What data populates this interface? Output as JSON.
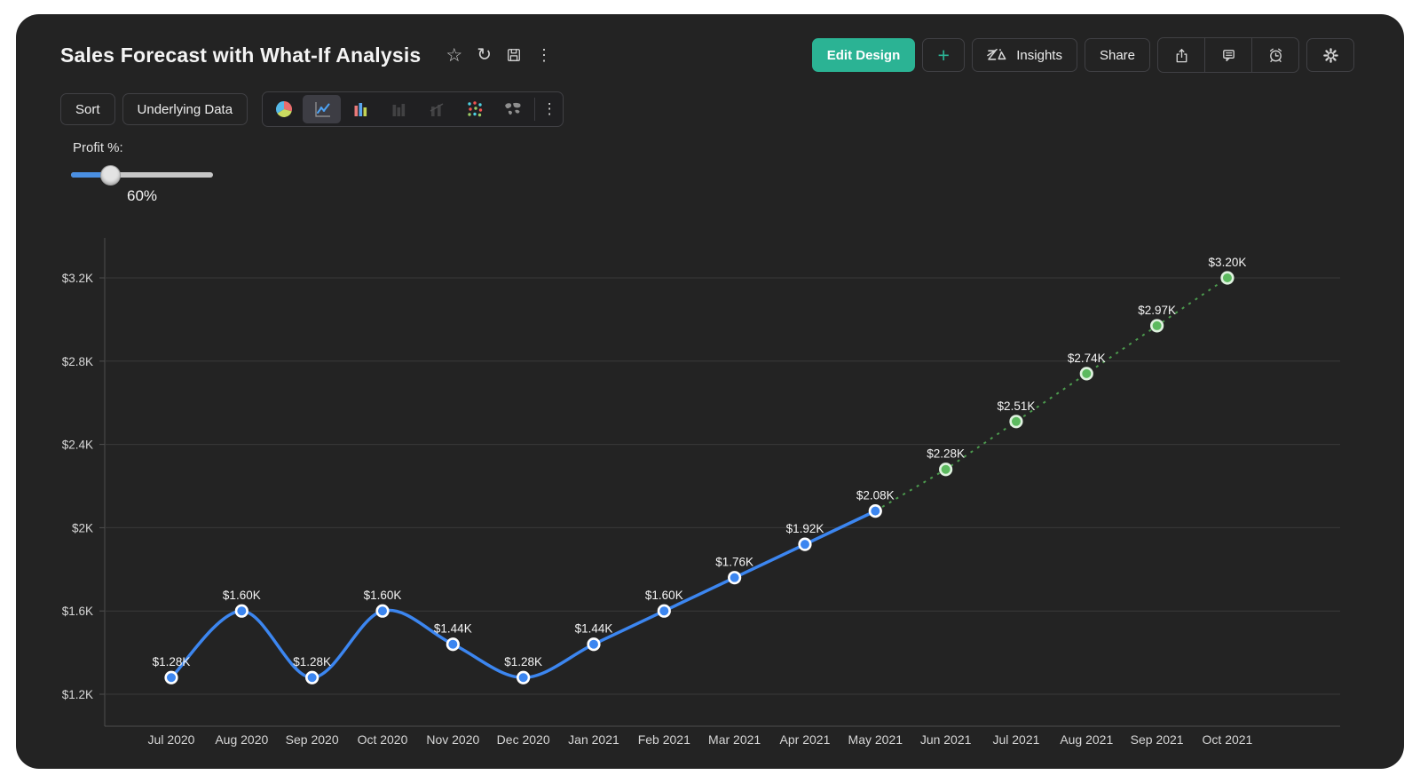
{
  "header": {
    "title": "Sales Forecast with What-If Analysis",
    "title_icons": {
      "star": "☆",
      "refresh": "↻",
      "more": "⋮"
    },
    "actions": {
      "edit_design": "Edit Design",
      "add": "+",
      "insights": "Insights",
      "share": "Share"
    },
    "action_icon_names": [
      "export-icon",
      "comment-icon",
      "alarm-icon",
      "settings-icon"
    ]
  },
  "toolbar": {
    "sort": "Sort",
    "underlying_data": "Underlying Data",
    "more": "⋮",
    "chart_types": [
      "pie-chart",
      "line-chart",
      "bar-chart",
      "stacked-bar-chart",
      "combo-chart",
      "scatter-plot",
      "map-chart"
    ],
    "selected_chart_type": "line-chart"
  },
  "whatif": {
    "label": "Profit %:",
    "value": "60%",
    "slider_position_pct": 27
  },
  "colors": {
    "accent_teal": "#2BB394",
    "line_blue": "#3C86F0",
    "forecast_green": "#4C9B4E",
    "forecast_marker_green": "#5CBA5F",
    "panel_bg": "#232323"
  },
  "chart_data": {
    "type": "line",
    "title": "Sales Forecast with What-If Analysis",
    "legend": "none",
    "grid": "horizontal",
    "x_labels": [
      "Jul 2020",
      "Aug 2020",
      "Sep 2020",
      "Oct 2020",
      "Nov 2020",
      "Dec 2020",
      "Jan 2021",
      "Feb 2021",
      "Mar 2021",
      "Apr 2021",
      "May 2021",
      "Jun 2021",
      "Jul 2021",
      "Aug 2021",
      "Sep 2021",
      "Oct 2021"
    ],
    "y_ticks": [
      {
        "value": 1200,
        "label": "$1.2K"
      },
      {
        "value": 1600,
        "label": "$1.6K"
      },
      {
        "value": 2000,
        "label": "$2K"
      },
      {
        "value": 2400,
        "label": "$2.4K"
      },
      {
        "value": 2800,
        "label": "$2.8K"
      },
      {
        "value": 3200,
        "label": "$3.2K"
      }
    ],
    "series": [
      {
        "id": "actual",
        "line_style": "solid",
        "color": "#3C86F0",
        "marker_fill": "#3C86F0",
        "marker_ring": "#FFFFFF",
        "start_index": 0,
        "values": [
          1280,
          1600,
          1280,
          1600,
          1440,
          1280,
          1440,
          1600,
          1760,
          1920,
          2080
        ],
        "point_labels": [
          "$1.28K",
          "$1.60K",
          "$1.28K",
          "$1.60K",
          "$1.44K",
          "$1.28K",
          "$1.44K",
          "$1.60K",
          "$1.76K",
          "$1.92K",
          "$2.08K"
        ]
      },
      {
        "id": "forecast",
        "line_style": "dotted",
        "color": "#4C9B4E",
        "marker_fill": "#5CBA5F",
        "marker_ring": "#DFF2DF",
        "start_index": 10,
        "values": [
          2080,
          2280,
          2510,
          2740,
          2970,
          3200
        ],
        "point_labels": [
          "",
          "$2.28K",
          "$2.51K",
          "$2.74K",
          "$2.97K",
          "$3.20K"
        ]
      }
    ]
  }
}
